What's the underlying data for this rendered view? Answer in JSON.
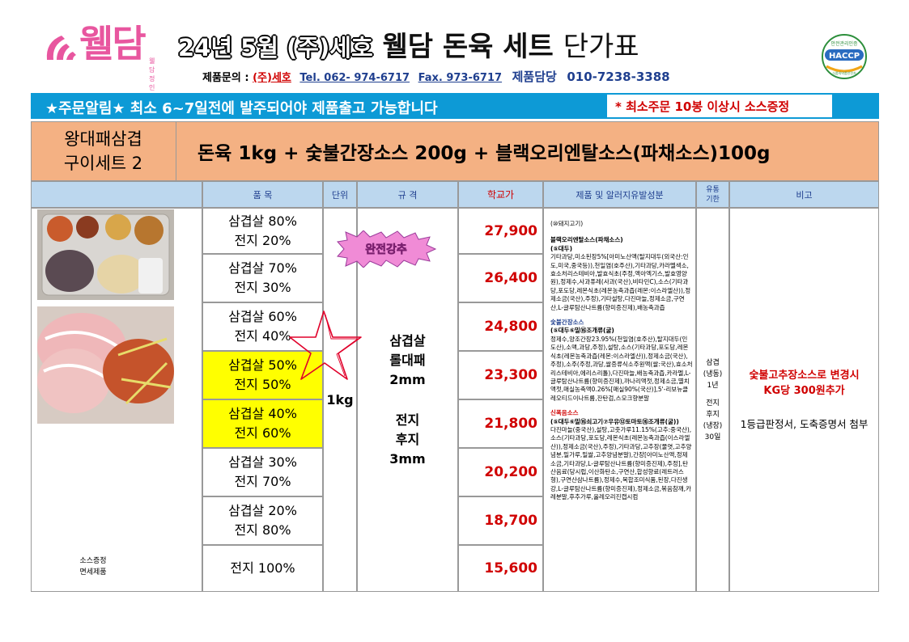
{
  "header": {
    "logo_text": "웰담",
    "logo_sub": "웰담 정인",
    "title_date": "24년 5월 (주)세호",
    "title_main": "웰담 돈육 세트",
    "title_suffix": "단가표",
    "contact_label": "제품문의 :",
    "company": "(주)세호",
    "tel": "Tel. 062- 974-6717",
    "fax": "Fax. 973-6717",
    "manager_label": "제품담당",
    "manager_phone": "010-7238-3388",
    "haccp_top": "안전관리인증",
    "haccp_main": "HACCP",
    "haccp_bottom": "식품의약품안전처"
  },
  "notice": {
    "text": "★주문알림★ 최소 6~7일전에 발주되어야 제품출고 가능합니다",
    "min_order": "* 최소주문 10봉 이상시 소스증정"
  },
  "set": {
    "name_line1": "왕대패삼겹",
    "name_line2": "구이세트 2",
    "description": "돈육 1kg + 숯불간장소스 200g + 블랙오리엔탈소스(파채소스)100g"
  },
  "columns": {
    "item": "품    목",
    "unit": "단위",
    "spec": "규    격",
    "price": "학교가",
    "allergen": "제품 및 알러지유발성분",
    "shelf_line1": "유통",
    "shelf_line2": "기한",
    "remark": "비고"
  },
  "rows": [
    {
      "line1": "삼겹살 80%",
      "line2": "전지 20%",
      "price": "27,900",
      "highlight": false
    },
    {
      "line1": "삼겹살 70%",
      "line2": "전지 30%",
      "price": "26,400",
      "highlight": false
    },
    {
      "line1": "삼겹살 60%",
      "line2": "전지 40%",
      "price": "24,800",
      "highlight": false
    },
    {
      "line1": "삼겹살 50%",
      "line2": "전지 50%",
      "price": "23,300",
      "highlight": true
    },
    {
      "line1": "삼겹살 40%",
      "line2": "전지 60%",
      "price": "21,800",
      "highlight": true
    },
    {
      "line1": "삼겹살 30%",
      "line2": "전지 70%",
      "price": "20,200",
      "highlight": false
    },
    {
      "line1": "삼겹살 20%",
      "line2": "전지 80%",
      "price": "18,700",
      "highlight": false
    },
    {
      "line1": "전지 100%",
      "line2": "",
      "price": "15,600",
      "highlight": false
    }
  ],
  "unit": "1kg",
  "spec": {
    "line1": "삼겹살",
    "line2": "롤대패",
    "line3": "2mm",
    "line4": "전지",
    "line5": "후지",
    "line6": "3mm"
  },
  "badge": "완전강추",
  "sauce_note_line1": "소스증정",
  "sauce_note_line2": "면세제품",
  "allergen": {
    "pork": "(⑩돼지고기)",
    "black_title": "블랙오리엔탈소스(파채소스)",
    "black_allergens": "(⑤대두)",
    "black_body": "기타과당,미소된장5%[아미노산액(탈지대두(외국산:인도,미국,중국등)),천일염(호주산),기타과당,카라멜색소,효소처리스테비아,발효식초(주정,액아엑기스,발효영양원),정제수,사과퓨레(사과(국산),비타민C),소스(기타과당,포도당,레몬식초(레몬농축과즙(레몬:이스라엘산)),정제소금(국산),주정),기타설탕,다진마늘,정제소금,구연산,L-글루탐산나트륨(향미증진제),배농축과즙",
    "soy_title": "숯불간장소스",
    "soy_allergens": "(⑤대두⑥밀⑯조개류(굴)",
    "soy_body": "정제수,양조간장23.95%(천일염(호주산),탈지대두(인도산),소맥,과당,주정),설탕,소스(기타과당,포도당,레몬식초(레몬농축과즙(레몬:이스라엘산)),정제소금(국산),주정),소주(주정,과당,쌀증류식소주원액(쌀:국산),효소처리스테비아,에리스리톨),다진마늘,배농축과즙,카라멜,L-글루탐산나트륨(향미증진제),까나리액젓,정제소금,멸치액젓,매실농축액0.26%[매실90%(국산)],5'-리보뉴클레오티드이나트륨,잔탄검,스모크향분말",
    "spicy_title": "신폭음소스",
    "spicy_allergens": "(⑤대두⑥밀⑯쇠고기⑦우유⑫토마토⑯조개류(굴))",
    "spicy_body": "다진마늘(중국산),설탕,고춧가루11.15%(고추:중국산),소스(기타과당,포도당,레몬식초(레몬농축과즙(이스라엘산)),정제소금(국산),주정),기타과당,고추장(물엿,고추양념분,밀가루,밀쌀,고추양념분말),간장[아미노산액,정제소금,기타과당,L-글루탐산나트륨(향미증진제),주정],탄산음료(당시럽,이산화탄소,구연산,합성향료(레트러스형),구연산삼나트륨),정제수,복합조미식품,된장,다진생강,L-글루탐산나트륨(향미증진제),정제소금,볶음참깨,카레분말,후추가루,올레오리진캡시컴"
  },
  "shelf": {
    "line1": "삼겹",
    "line2": "(냉동)",
    "line3": "1년",
    "line4": "전지",
    "line5": "후지",
    "line6": "(냉장)",
    "line7": "30일"
  },
  "remark": {
    "line1": "숯불고추장소스로 변경시",
    "line2": "KG당 300원추가",
    "line3": "1등급판정서, 도축증명서 첨부"
  }
}
